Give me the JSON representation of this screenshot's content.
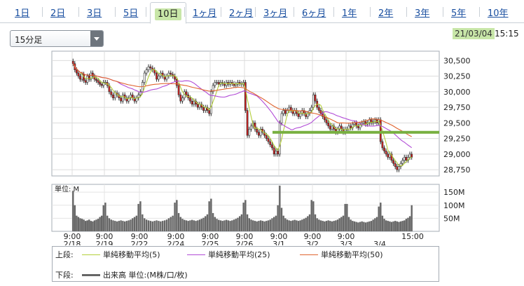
{
  "tabs": [
    {
      "label": "1日",
      "active": false
    },
    {
      "label": "2日",
      "active": false
    },
    {
      "label": "3日",
      "active": false
    },
    {
      "label": "5日",
      "active": false
    },
    {
      "label": "10日",
      "active": true
    },
    {
      "label": "1ヶ月",
      "active": false
    },
    {
      "label": "2ヶ月",
      "active": false
    },
    {
      "label": "3ヶ月",
      "active": false
    },
    {
      "label": "6ヶ月",
      "active": false
    },
    {
      "label": "1年",
      "active": false
    },
    {
      "label": "2年",
      "active": false
    },
    {
      "label": "3年",
      "active": false
    },
    {
      "label": "5年",
      "active": false
    },
    {
      "label": "10年",
      "active": false
    }
  ],
  "interval_select": {
    "selected": "15分足"
  },
  "as_of": {
    "date": "21/03/04",
    "time": "15:15"
  },
  "colors": {
    "accent_green": "#c8e6a8",
    "ma5": "#b4cf3a",
    "ma25": "#b14bd6",
    "ma50": "#e0642f",
    "candle_up": "#ffffff",
    "candle_down": "#d21f1f",
    "candle_outline": "#333333",
    "support_line": "#78b040",
    "volume": "#666666"
  },
  "legend": {
    "upper_label": "上段:",
    "lower_label": "下段:",
    "ma5_label": "単純移動平均(5)",
    "ma25_label": "単純移動平均(25)",
    "ma50_label": "単純移動平均(50)",
    "volume_label": "出来高 単位:(M株/口/枚)"
  },
  "chart_data": [
    {
      "type": "candlestick",
      "title": "",
      "interval": "15分足",
      "sessions": [
        {
          "date": "2/18",
          "prices": [
            30450,
            30350,
            30300,
            30250,
            30200,
            30280,
            30180,
            30150,
            30250,
            30200,
            30300,
            30250,
            30200,
            30180,
            30150,
            30120,
            30100,
            30150
          ]
        },
        {
          "date": "2/19",
          "prices": [
            30150,
            30100,
            30000,
            29950,
            29900,
            29980,
            29950,
            29900,
            29850,
            29950,
            29900,
            29850,
            29900,
            29950,
            29900,
            29850,
            29900,
            29950
          ]
        },
        {
          "date": "2/22",
          "prices": [
            30000,
            30150,
            30300,
            30350,
            30400,
            30380,
            30350,
            30300,
            30200,
            30250,
            30300,
            30250,
            30200,
            30250,
            30300,
            30280,
            30250,
            30200
          ]
        },
        {
          "date": "2/24",
          "prices": [
            30100,
            29950,
            29850,
            29900,
            30000,
            29950,
            29900,
            29850,
            29800,
            29850,
            29800,
            29750,
            29800,
            29750,
            29700,
            29750,
            29700,
            29650
          ]
        },
        {
          "date": "2/25",
          "prices": [
            30000,
            30100,
            30150,
            30150,
            30120,
            30150,
            30130,
            30100,
            30150,
            30120,
            30150,
            30130,
            30100,
            30120,
            30150,
            30130,
            30120,
            30150
          ]
        },
        {
          "date": "2/26",
          "prices": [
            29700,
            29300,
            29400,
            29450,
            29500,
            29400,
            29350,
            29300,
            29400,
            29350,
            29300,
            29250,
            29200,
            29150,
            29100,
            29000,
            29050,
            29000
          ]
        },
        {
          "date": "3/1",
          "prices": [
            29500,
            29650,
            29700,
            29650,
            29700,
            29750,
            29700,
            29650,
            29700,
            29650,
            29600,
            29650,
            29700,
            29650,
            29600,
            29650,
            29700,
            29750
          ]
        },
        {
          "date": "3/2",
          "prices": [
            29950,
            29850,
            29750,
            29700,
            29650,
            29600,
            29550,
            29500,
            29450,
            29400,
            29450,
            29400,
            29350,
            29400,
            29450,
            29400,
            29350,
            29400
          ]
        },
        {
          "date": "3/3",
          "prices": [
            29400,
            29450,
            29420,
            29480,
            29500,
            29450,
            29420,
            29480,
            29500,
            29520,
            29480,
            29500,
            29550,
            29500,
            29520,
            29550,
            29500,
            29550
          ]
        },
        {
          "date": "3/4",
          "prices": [
            29200,
            29100,
            29050,
            29000,
            28950,
            29000,
            28900,
            28850,
            28800,
            28750,
            28800,
            28850,
            28900,
            28950,
            28900,
            28950,
            29000,
            28950
          ]
        }
      ],
      "support_level": 29350,
      "y_ticks": [
        "30,500",
        "30,250",
        "30,000",
        "29,750",
        "29,500",
        "29,250",
        "29,000",
        "28,750"
      ],
      "y_values": [
        30500,
        30250,
        30000,
        29750,
        29500,
        29250,
        29000,
        28750
      ],
      "ylim": [
        28650,
        30650
      ],
      "x_tick_times": [
        "9:00",
        "9:00",
        "9:00",
        "9:00",
        "9:00",
        "9:00",
        "9:00",
        "9:00",
        "9:00",
        "15:00"
      ],
      "x_tick_dates": [
        "2/18",
        "2/19",
        "2/22",
        "2/24",
        "2/25",
        "2/26",
        "3/1",
        "3/2",
        "3/3",
        "3/4"
      ],
      "ma5": {
        "name": "単純移動平均(5)"
      },
      "ma25": {
        "name": "単純移動平均(25)"
      },
      "ma50": {
        "name": "単純移動平均(50)"
      }
    },
    {
      "type": "bar",
      "unit_label": "単位: M",
      "y_ticks": [
        "150M",
        "100M",
        "50M"
      ],
      "y_values": [
        150,
        100,
        50
      ],
      "ylim": [
        0,
        180
      ],
      "sessions_volume": [
        [
          155,
          100,
          60,
          55,
          50,
          48,
          45,
          40,
          42,
          45,
          40,
          38,
          42,
          45,
          48,
          55,
          60,
          100
        ],
        [
          110,
          60,
          50,
          45,
          42,
          40,
          38,
          40,
          42,
          40,
          38,
          40,
          42,
          45,
          50,
          55,
          60,
          105
        ],
        [
          115,
          65,
          50,
          45,
          42,
          40,
          38,
          40,
          42,
          40,
          38,
          40,
          42,
          45,
          50,
          55,
          60,
          110
        ],
        [
          120,
          70,
          55,
          48,
          44,
          42,
          40,
          42,
          44,
          42,
          40,
          42,
          45,
          48,
          52,
          58,
          65,
          115
        ],
        [
          125,
          70,
          55,
          48,
          44,
          42,
          40,
          42,
          44,
          42,
          40,
          42,
          45,
          48,
          52,
          58,
          65,
          110
        ],
        [
          120,
          65,
          50,
          45,
          42,
          40,
          38,
          40,
          42,
          40,
          38,
          40,
          42,
          45,
          50,
          55,
          60,
          100
        ],
        [
          175,
          90,
          60,
          50,
          45,
          42,
          40,
          42,
          44,
          42,
          40,
          42,
          45,
          48,
          52,
          58,
          65,
          120
        ],
        [
          115,
          65,
          50,
          45,
          42,
          40,
          38,
          40,
          42,
          40,
          38,
          40,
          42,
          45,
          50,
          55,
          60,
          105
        ],
        [
          105,
          55,
          45,
          40,
          38,
          36,
          34,
          36,
          38,
          36,
          34,
          36,
          38,
          40,
          45,
          50,
          55,
          95
        ],
        [
          110,
          60,
          48,
          42,
          40,
          38,
          36,
          38,
          40,
          38,
          36,
          38,
          40,
          42,
          48,
          52,
          58,
          100
        ]
      ]
    }
  ]
}
